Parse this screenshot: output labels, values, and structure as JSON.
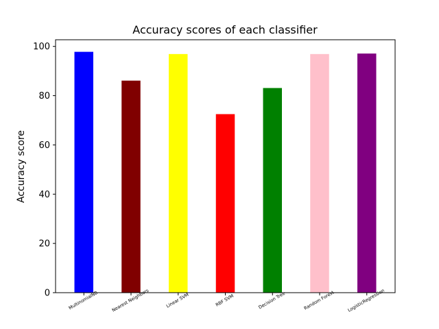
{
  "chart_data": {
    "type": "bar",
    "title": "Accuracy scores of each classifier",
    "xlabel": "",
    "ylabel": "Accuracy score",
    "categories": [
      "MultinomialNB",
      "Nearest Neighbors",
      "Linear SVM",
      "RBF SVM",
      "Decision Tree",
      "Random Forest",
      "LogisticRegression"
    ],
    "values": [
      97.8,
      86.1,
      96.9,
      72.5,
      83.1,
      96.9,
      97.1
    ],
    "colors": [
      "#0000ff",
      "#800000",
      "#ffff00",
      "#ff0000",
      "#008000",
      "#ffc0cb",
      "#800080"
    ],
    "yticks": [
      0,
      20,
      40,
      60,
      80,
      100
    ],
    "ylim": [
      0,
      102.7
    ],
    "grid": false,
    "xtick_rotation_deg": -30
  }
}
